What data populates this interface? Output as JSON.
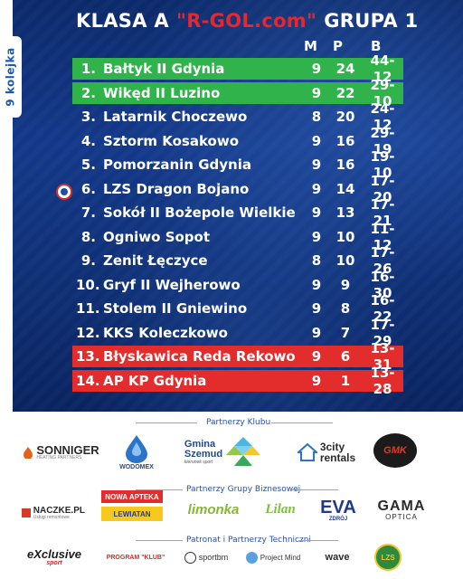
{
  "header": {
    "title_left": "KLASA A",
    "title_brand": "\"R-GOL.com\"",
    "title_right": "GRUPA 1",
    "round": "9 kolejka",
    "col_m": "M",
    "col_p": "P",
    "col_b": "B"
  },
  "table": [
    {
      "pos": "1.",
      "name": "Bałtyk II Gdynia",
      "m": "9",
      "p": "24",
      "b": "44-12",
      "status": "green"
    },
    {
      "pos": "2.",
      "name": "Wikęd II Luzino",
      "m": "9",
      "p": "22",
      "b": "29-10",
      "status": "green"
    },
    {
      "pos": "3.",
      "name": "Latarnik Choczewo",
      "m": "8",
      "p": "20",
      "b": "24-12",
      "status": "none"
    },
    {
      "pos": "4.",
      "name": "Sztorm Kosakowo",
      "m": "9",
      "p": "16",
      "b": "29-19",
      "status": "none"
    },
    {
      "pos": "5.",
      "name": "Pomorzanin Gdynia",
      "m": "9",
      "p": "16",
      "b": "19-10",
      "status": "none"
    },
    {
      "pos": "6.",
      "name": "LZS Dragon Bojano",
      "m": "9",
      "p": "14",
      "b": "17-20",
      "status": "none"
    },
    {
      "pos": "7.",
      "name": "Sokół II Bożepole Wielkie",
      "m": "9",
      "p": "13",
      "b": "17-21",
      "status": "none"
    },
    {
      "pos": "8.",
      "name": "Ogniwo Sopot",
      "m": "9",
      "p": "10",
      "b": "11-12",
      "status": "none"
    },
    {
      "pos": "9.",
      "name": "Zenit Łęczyce",
      "m": "8",
      "p": "10",
      "b": "17-26",
      "status": "none"
    },
    {
      "pos": "10.",
      "name": "Gryf II Wejherowo",
      "m": "9",
      "p": "9",
      "b": "16-30",
      "status": "none"
    },
    {
      "pos": "11.",
      "name": "Stolem II Gniewino",
      "m": "9",
      "p": "8",
      "b": "16-22",
      "status": "none"
    },
    {
      "pos": "12.",
      "name": "KKS Koleczkowo",
      "m": "9",
      "p": "7",
      "b": "17-29",
      "status": "none"
    },
    {
      "pos": "13.",
      "name": "Błyskawica Reda Rekowo",
      "m": "9",
      "p": "6",
      "b": "13-31",
      "status": "red"
    },
    {
      "pos": "14.",
      "name": "AP KP Gdynia",
      "m": "9",
      "p": "1",
      "b": "13-28",
      "status": "red"
    }
  ],
  "sponsors": {
    "club_title": "Partnerzy Klubu",
    "business_title": "Partnerzy Grupy Biznesowej",
    "tech_title": "Patronat i Partnerzy Techniczni",
    "club": {
      "sonniger": "SONNIGER",
      "sonniger_sub": "HEATING PARTNERS",
      "wodomex": "WODOMEX",
      "gmina": "Gmina",
      "szemud": "Szemud",
      "gmina_sub": "kierunek sport",
      "tricity": "3city",
      "rentals": "rentals",
      "gmk": "GMK"
    },
    "business": {
      "naczke": "NACZKE.PL",
      "naczke_sub": "Usługi remontowe",
      "nowa": "NOWA APTEKA",
      "lewiatan": "LEWIATAN",
      "limonka": "limonka",
      "lilan": "Lilan",
      "eva": "EVA",
      "eva_sub": "ZDRÓJ",
      "gama": "GAMA",
      "optica": "OPTICA"
    },
    "tech": {
      "exclusive": "eXclusive",
      "exclusive_sub": "sport",
      "program": "PROGRAM \"KLUB\"",
      "sportbm": "sportbm",
      "projectmind": "Project Mind",
      "wave": "wave",
      "lzs": "LZS"
    }
  },
  "colors": {
    "green": "#2fb34a",
    "red": "#e32c2c",
    "brand_red": "#e8262d",
    "panel_blue": "#14398a"
  }
}
